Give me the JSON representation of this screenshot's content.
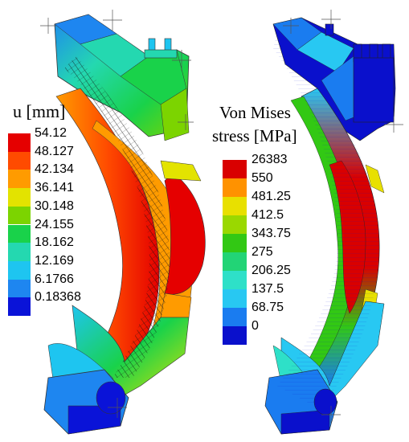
{
  "displacement_legend": {
    "title": "u [mm]",
    "entries": [
      {
        "label": "54.12",
        "color": "#e50000"
      },
      {
        "label": "48.127",
        "color": "#ff4b00"
      },
      {
        "label": "42.134",
        "color": "#ff9b00"
      },
      {
        "label": "36.141",
        "color": "#e3e300"
      },
      {
        "label": "30.148",
        "color": "#7cd400"
      },
      {
        "label": "24.155",
        "color": "#19d24a"
      },
      {
        "label": "18.162",
        "color": "#24d8b0"
      },
      {
        "label": "12.169",
        "color": "#1ec5f0"
      },
      {
        "label": "6.1766",
        "color": "#1e86f0"
      },
      {
        "label": "0.18368",
        "color": "#0a13d8"
      }
    ]
  },
  "stress_legend": {
    "title_line1": "Von Mises",
    "title_line2": "stress [MPa]",
    "entries": [
      {
        "label": "26383",
        "color": "#d90000"
      },
      {
        "label": "550",
        "color": "#ff9200"
      },
      {
        "label": "481.25",
        "color": "#e8e000"
      },
      {
        "label": "412.5",
        "color": "#9ad800"
      },
      {
        "label": "343.75",
        "color": "#32c814"
      },
      {
        "label": "275",
        "color": "#22d476"
      },
      {
        "label": "206.25",
        "color": "#2ee0c8"
      },
      {
        "label": "137.5",
        "color": "#28c8f2"
      },
      {
        "label": "68.75",
        "color": "#1a7cf0"
      },
      {
        "label": "0",
        "color": "#0a10cc"
      }
    ]
  }
}
